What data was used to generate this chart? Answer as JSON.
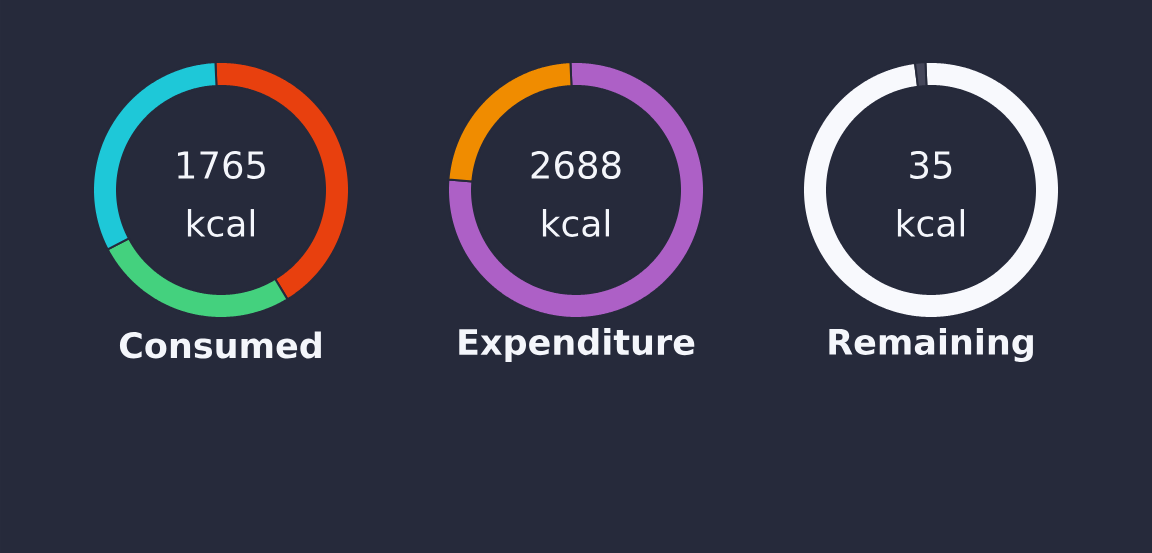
{
  "chart_data": [
    {
      "type": "donut",
      "title": "Consumed",
      "categories": [
        null,
        null,
        null
      ],
      "values": [
        42,
        26,
        32
      ],
      "colors": [
        "#e8400e",
        "#44d17e",
        "#1ec8d8"
      ],
      "annotations": [
        "1765",
        "kcal"
      ]
    },
    {
      "type": "donut",
      "title": "Expenditure",
      "categories": [
        null,
        null
      ],
      "values": [
        77,
        23
      ],
      "colors": [
        "#ad60c6",
        "#f08c00"
      ],
      "annotations": [
        "2688",
        "kcal"
      ]
    },
    {
      "type": "donut",
      "title": "Remaining",
      "categories": [
        null,
        null
      ],
      "values": [
        98.7,
        1.3
      ],
      "colors": [
        "#f8f9fd",
        "#45475a"
      ],
      "annotations": [
        "35",
        "kcal"
      ]
    }
  ]
}
